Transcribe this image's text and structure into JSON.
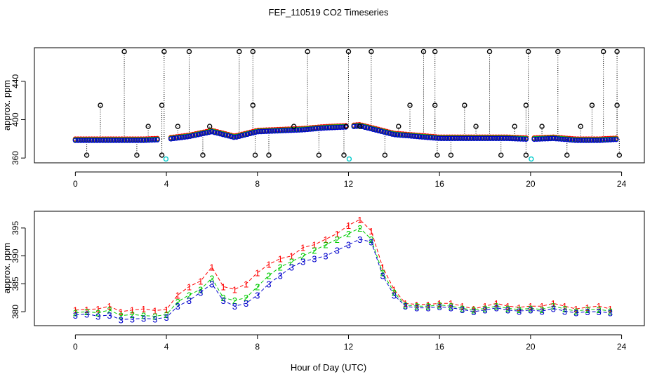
{
  "title": "FEF_110519  CO2 Timeseries",
  "xlabel": "Hour of Day (UTC)",
  "chart_data": [
    {
      "type": "scatter",
      "panel": "top",
      "ylabel": "approx. ppm",
      "xlim": [
        -1.8,
        25
      ],
      "ylim": [
        355,
        475
      ],
      "xticks": [
        "0",
        "4",
        "8",
        "12",
        "16",
        "20",
        "24"
      ],
      "yticks": [
        "360",
        "400",
        "440"
      ],
      "baseline": [
        [
          0,
          379
        ],
        [
          1,
          379
        ],
        [
          2,
          379
        ],
        [
          3,
          379
        ],
        [
          4,
          380
        ],
        [
          5,
          383
        ],
        [
          6,
          388
        ],
        [
          7,
          382
        ],
        [
          8,
          388
        ],
        [
          9,
          389
        ],
        [
          10,
          390
        ],
        [
          11,
          392
        ],
        [
          12,
          393
        ],
        [
          12.5,
          394
        ],
        [
          13,
          391
        ],
        [
          14,
          385
        ],
        [
          15,
          383
        ],
        [
          16,
          381
        ],
        [
          17,
          381
        ],
        [
          18,
          381
        ],
        [
          19,
          381
        ],
        [
          20,
          380
        ],
        [
          21,
          381
        ],
        [
          22,
          379
        ],
        [
          23,
          379
        ],
        [
          23.8,
          380
        ]
      ],
      "spikes_up": [
        2.15,
        3.9,
        5.0,
        7.2,
        7.8,
        10.2,
        12.0,
        13.0,
        15.3,
        15.8,
        18.2,
        19.9,
        21.2,
        23.2,
        23.8
      ],
      "spikes_mid": [
        1.1,
        3.2,
        3.8,
        4.5,
        5.9,
        7.8,
        9.6,
        11.9,
        12.5,
        14.2,
        14.7,
        15.8,
        17.1,
        17.6,
        19.3,
        19.8,
        20.5,
        22.2,
        22.7,
        23.8
      ],
      "spikes_low": [
        0.5,
        2.7,
        3.8,
        5.6,
        7.9,
        8.5,
        10.7,
        11.8,
        13.6,
        15.9,
        16.5,
        18.7,
        19.8,
        21.6,
        23.9
      ],
      "cyan_points": [
        [
          3.98,
          359
        ],
        [
          12.03,
          359
        ],
        [
          20.03,
          359
        ]
      ],
      "series": [
        {
          "name": "1",
          "color": "#ff0000"
        },
        {
          "name": "2",
          "color": "#00cc00"
        },
        {
          "name": "3",
          "color": "#0000cc"
        }
      ]
    },
    {
      "type": "line",
      "panel": "bottom",
      "ylabel": "approx. ppm",
      "xlim": [
        -1.8,
        25
      ],
      "ylim": [
        377.5,
        398
      ],
      "xticks": [
        "0",
        "4",
        "8",
        "12",
        "16",
        "20",
        "24"
      ],
      "yticks": [
        "380",
        "385",
        "390",
        "395"
      ],
      "x": [
        0,
        0.5,
        1,
        1.5,
        2,
        2.5,
        3,
        3.5,
        4,
        4.5,
        5,
        5.5,
        6,
        6.5,
        7,
        7.5,
        8,
        8.5,
        9,
        9.5,
        10,
        10.5,
        11,
        11.5,
        12,
        12.5,
        13,
        13.5,
        14,
        14.5,
        15,
        15.5,
        16,
        16.5,
        17,
        17.5,
        18,
        18.5,
        19,
        19.5,
        20,
        20.5,
        21,
        21.5,
        22,
        22.5,
        23,
        23.5
      ],
      "series": [
        {
          "name": "1",
          "color": "#ff0000",
          "values": [
            380.3,
            380.4,
            380.5,
            381.0,
            380.0,
            380.3,
            380.5,
            380.2,
            380.4,
            383.0,
            384.5,
            385.5,
            388.0,
            384.5,
            384.0,
            385.0,
            387.0,
            388.5,
            389.5,
            390.0,
            391.5,
            392.0,
            393.0,
            394.0,
            395.5,
            396.5,
            394.5,
            388.0,
            384.0,
            381.5,
            381.3,
            381.3,
            381.5,
            381.5,
            381.0,
            380.5,
            381.0,
            381.5,
            381.0,
            380.8,
            381.0,
            381.0,
            381.5,
            381.0,
            380.5,
            380.8,
            381.0,
            380.5
          ]
        },
        {
          "name": "2",
          "color": "#00cc00",
          "values": [
            379.8,
            380.0,
            379.8,
            380.3,
            379.3,
            379.5,
            379.3,
            379.2,
            379.5,
            381.8,
            383.0,
            384.0,
            386.0,
            382.5,
            382.0,
            382.5,
            384.5,
            386.5,
            388.0,
            389.0,
            390.0,
            391.0,
            392.0,
            393.0,
            394.0,
            395.0,
            393.0,
            387.0,
            383.5,
            381.2,
            381.0,
            381.0,
            381.2,
            381.0,
            380.6,
            380.3,
            380.6,
            381.0,
            380.6,
            380.4,
            380.6,
            380.4,
            381.0,
            380.5,
            380.1,
            380.4,
            380.4,
            380.1
          ]
        },
        {
          "name": "3",
          "color": "#0000cc",
          "values": [
            379.4,
            379.6,
            379.2,
            379.4,
            378.6,
            378.7,
            378.8,
            378.7,
            379.0,
            381.0,
            382.0,
            383.5,
            385.0,
            382.0,
            381.0,
            381.5,
            383.0,
            385.0,
            386.5,
            388.0,
            389.0,
            389.5,
            390.0,
            391.0,
            392.0,
            393.0,
            392.5,
            386.5,
            383.0,
            381.0,
            380.7,
            380.7,
            380.9,
            380.7,
            380.4,
            380.0,
            380.3,
            380.7,
            380.3,
            380.1,
            380.3,
            380.1,
            380.6,
            380.1,
            379.8,
            380.0,
            380.0,
            379.8
          ]
        }
      ]
    }
  ]
}
